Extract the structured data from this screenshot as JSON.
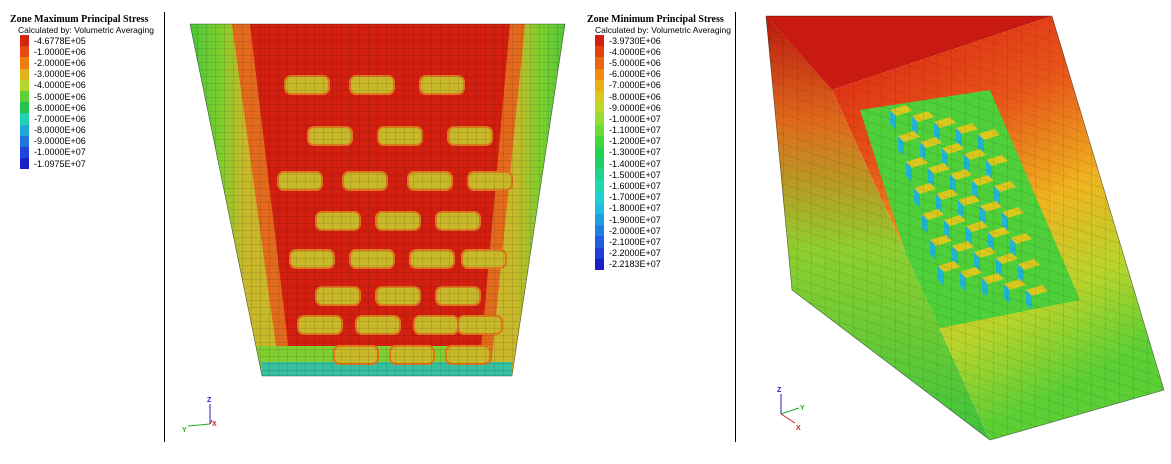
{
  "legend_max": {
    "title": "Zone Maximum Principal Stress",
    "subtitle": "Calculated by: Volumetric Averaging",
    "entries": [
      {
        "label": "-4.6778E+05",
        "color": "#d62412"
      },
      {
        "label": "-1.0000E+06",
        "color": "#e54a10"
      },
      {
        "label": "-2.0000E+06",
        "color": "#ef7d10"
      },
      {
        "label": "-3.0000E+06",
        "color": "#e0b21c"
      },
      {
        "label": "-4.0000E+06",
        "color": "#b5d62a"
      },
      {
        "label": "-5.0000E+06",
        "color": "#5fd238"
      },
      {
        "label": "-6.0000E+06",
        "color": "#22c44e"
      },
      {
        "label": "-7.0000E+06",
        "color": "#1fd3b2"
      },
      {
        "label": "-8.0000E+06",
        "color": "#20a9d6"
      },
      {
        "label": "-9.0000E+06",
        "color": "#2074e0"
      },
      {
        "label": "-1.0000E+07",
        "color": "#1f45df"
      },
      {
        "label": "-1.0975E+07",
        "color": "#1a1fc9"
      }
    ]
  },
  "legend_min": {
    "title": "Zone Minimum Principal Stress",
    "subtitle": "Calculated by: Volumetric Averaging",
    "entries": [
      {
        "label": "-3.9730E+06",
        "color": "#d61e12"
      },
      {
        "label": "-4.0000E+06",
        "color": "#e3420f"
      },
      {
        "label": "-5.0000E+06",
        "color": "#ec6610"
      },
      {
        "label": "-6.0000E+06",
        "color": "#f08a12"
      },
      {
        "label": "-7.0000E+06",
        "color": "#e9ad17"
      },
      {
        "label": "-8.0000E+06",
        "color": "#d9c91e"
      },
      {
        "label": "-9.0000E+06",
        "color": "#bcd82a"
      },
      {
        "label": "-1.0000E+07",
        "color": "#97dc30"
      },
      {
        "label": "-1.1000E+07",
        "color": "#6cdc36"
      },
      {
        "label": "-1.2000E+07",
        "color": "#42d83c"
      },
      {
        "label": "-1.3000E+07",
        "color": "#25d24c"
      },
      {
        "label": "-1.4000E+07",
        "color": "#1ed06a"
      },
      {
        "label": "-1.5000E+07",
        "color": "#1ed48e"
      },
      {
        "label": "-1.6000E+07",
        "color": "#1fd8b0"
      },
      {
        "label": "-1.7000E+07",
        "color": "#1fd2cf"
      },
      {
        "label": "-1.8000E+07",
        "color": "#1fbde0"
      },
      {
        "label": "-1.9000E+07",
        "color": "#1f9fe2"
      },
      {
        "label": "-2.0000E+07",
        "color": "#1f7fe2"
      },
      {
        "label": "-2.1000E+07",
        "color": "#1f5ee0"
      },
      {
        "label": "-2.2000E+07",
        "color": "#1f3ed8"
      },
      {
        "label": "-2.2183E+07",
        "color": "#1a1fc9"
      }
    ]
  },
  "axes_left": {
    "z": "Z",
    "y": "Y",
    "x": "X"
  },
  "axes_right": {
    "z": "Z",
    "y": "Y",
    "x": "X"
  },
  "colors": {
    "red": "#d21f10",
    "orange": "#e8621a",
    "yellow": "#c9c02a",
    "green": "#3ec43c",
    "blue": "#2060d8",
    "mesh": "#000000"
  }
}
